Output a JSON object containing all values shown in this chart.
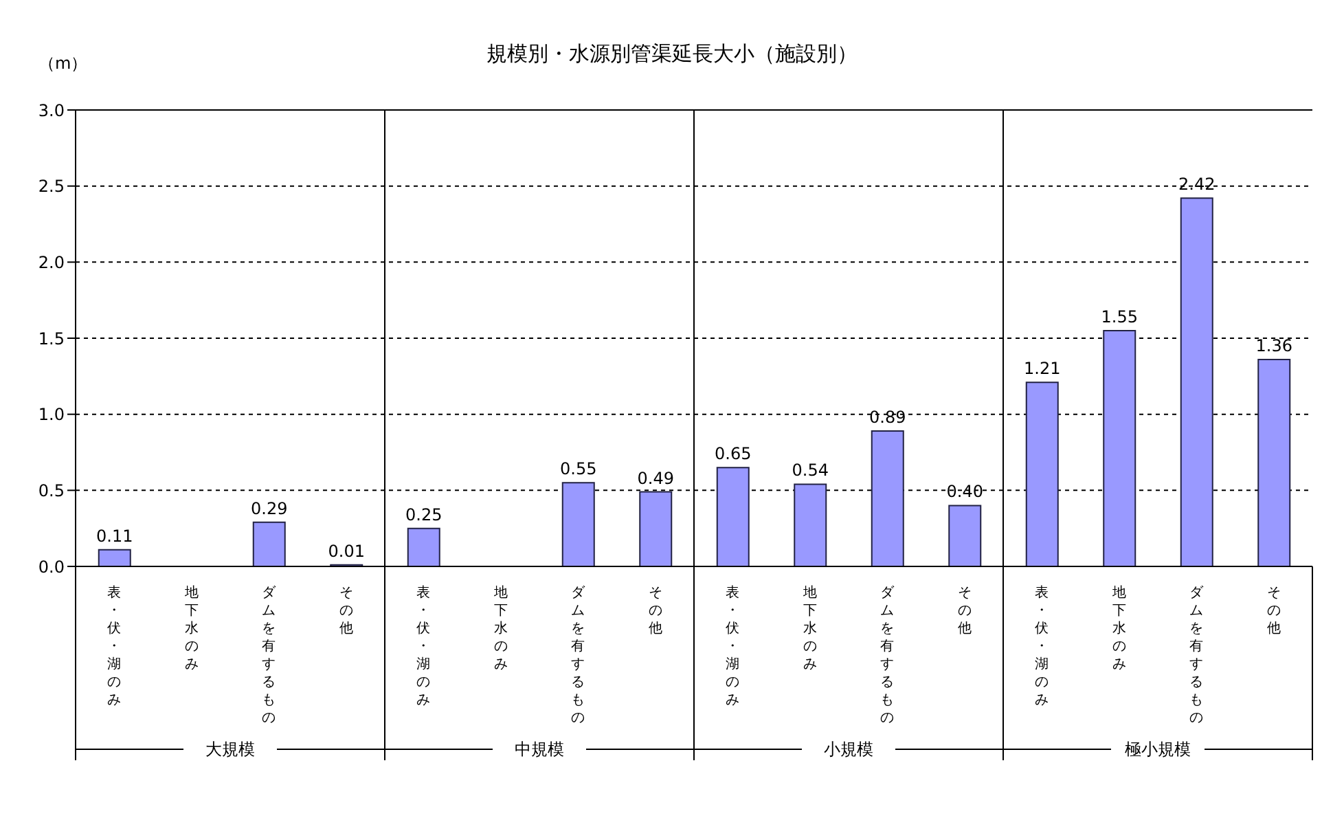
{
  "chart_data": {
    "type": "bar",
    "title": "規模別・水源別管渠延長大小（施設別）",
    "ylabel": "（m）",
    "categories": [
      "表・伏・湖のみ",
      "地下水のみ",
      "ダムを有するもの",
      "その他",
      "表・伏・湖のみ",
      "地下水のみ",
      "ダムを有するもの",
      "その他",
      "表・伏・湖のみ",
      "地下水のみ",
      "ダムを有するもの",
      "その他",
      "表・伏・湖のみ",
      "地下水のみ",
      "ダムを有するもの",
      "その他"
    ],
    "series": [
      {
        "color": "#9999ff",
        "values": [
          0.11,
          null,
          0.29,
          0.01,
          0.25,
          null,
          0.55,
          0.49,
          0.65,
          0.54,
          0.89,
          0.4,
          1.21,
          1.55,
          2.42,
          1.36
        ],
        "value_labels": [
          "0.11",
          null,
          "0.29",
          "0.01",
          "0.25",
          null,
          "0.55",
          "0.49",
          "0.65",
          "0.54",
          "0.89",
          "0.40",
          "1.21",
          "1.55",
          "2.42",
          "1.36"
        ]
      }
    ],
    "annotations": [
      "大規模",
      "中規模",
      "小規模",
      "極小規模"
    ],
    "ylim": [
      0,
      3
    ],
    "yticks": [
      {
        "value": 0,
        "label": "0.0"
      },
      {
        "value": 0.5,
        "label": "0.5"
      },
      {
        "value": 1,
        "label": "1.0"
      },
      {
        "value": 1.5,
        "label": "1.5"
      },
      {
        "value": 2,
        "label": "2.0"
      },
      {
        "value": 2.5,
        "label": "2.5"
      },
      {
        "value": 3,
        "label": "3.0"
      }
    ],
    "grid": "y",
    "legend": false
  }
}
